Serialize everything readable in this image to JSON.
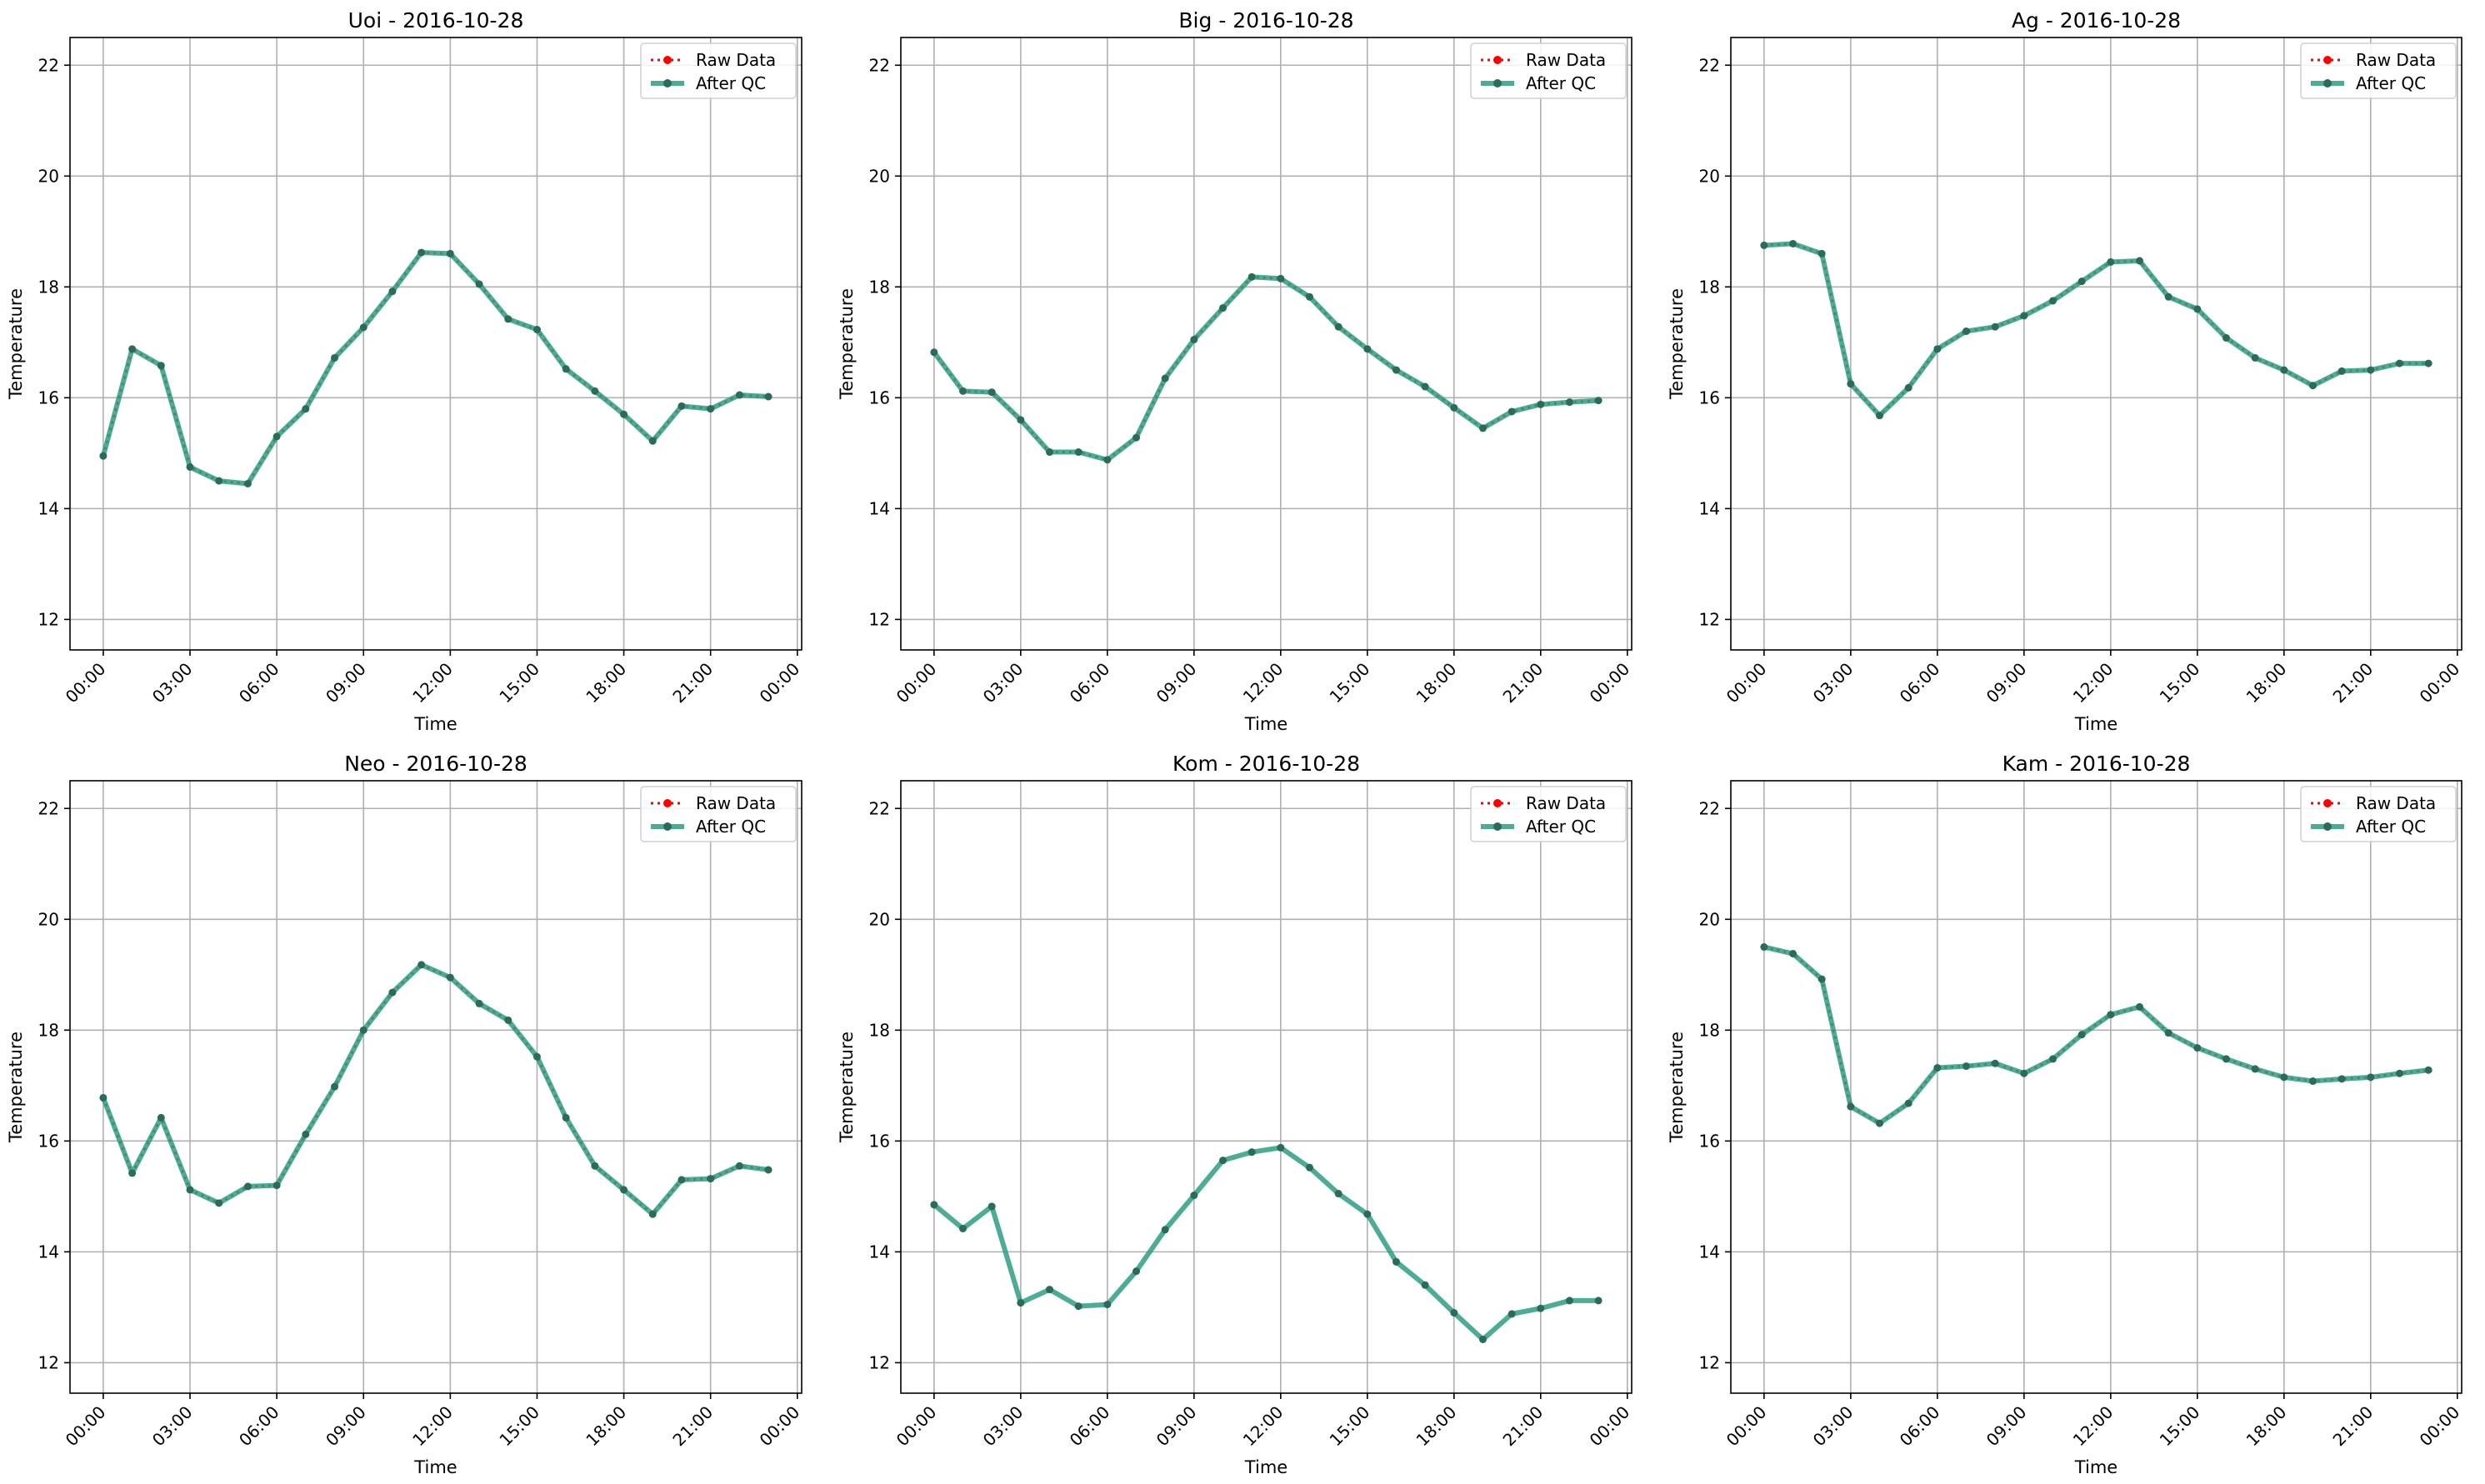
{
  "legend": {
    "raw_label": "Raw Data",
    "qc_label": "After QC"
  },
  "colors": {
    "raw": "#ff0000",
    "qc_line": "#2e9e82",
    "qc_marker": "#2a6b5a"
  },
  "xtick_labels": [
    "00:00",
    "03:00",
    "06:00",
    "09:00",
    "12:00",
    "15:00",
    "18:00",
    "21:00",
    "00:00"
  ],
  "ytick_labels": [
    "12",
    "14",
    "16",
    "18",
    "20",
    "22"
  ],
  "chart_data": [
    {
      "type": "line",
      "title": "Uoi - 2016-10-28",
      "xlabel": "Time",
      "ylabel": "Temperature",
      "x_hours": [
        0,
        1,
        2,
        3,
        4,
        5,
        6,
        7,
        8,
        9,
        10,
        11,
        12,
        13,
        14,
        15,
        16,
        17,
        18,
        19,
        20,
        21,
        22,
        23
      ],
      "xlim_hours": [
        -1.15,
        24.15
      ],
      "ylim": [
        11.45,
        22.5
      ],
      "grid": true,
      "legend_position": "top-right",
      "raw_visible": true,
      "series": [
        {
          "name": "Raw Data",
          "values": [
            14.95,
            16.88,
            16.58,
            14.75,
            14.5,
            14.45,
            15.3,
            15.8,
            16.72,
            17.27,
            17.92,
            18.62,
            18.6,
            18.05,
            17.42,
            17.23,
            16.52,
            16.12,
            15.7,
            15.22,
            15.85,
            15.8,
            16.05,
            16.02
          ]
        },
        {
          "name": "After QC",
          "values": [
            14.95,
            16.88,
            16.58,
            14.75,
            14.5,
            14.45,
            15.3,
            15.8,
            16.72,
            17.27,
            17.92,
            18.62,
            18.6,
            18.05,
            17.42,
            17.23,
            16.52,
            16.12,
            15.7,
            15.22,
            15.85,
            15.8,
            16.05,
            16.02
          ]
        }
      ]
    },
    {
      "type": "line",
      "title": "Big - 2016-10-28",
      "xlabel": "Time",
      "ylabel": "Temperature",
      "x_hours": [
        0,
        1,
        2,
        3,
        4,
        5,
        6,
        7,
        8,
        9,
        10,
        11,
        12,
        13,
        14,
        15,
        16,
        17,
        18,
        19,
        20,
        21,
        22,
        23
      ],
      "xlim_hours": [
        -1.15,
        24.15
      ],
      "ylim": [
        11.45,
        22.5
      ],
      "grid": true,
      "legend_position": "top-right",
      "raw_visible": true,
      "series": [
        {
          "name": "Raw Data",
          "values": [
            16.82,
            16.12,
            16.1,
            15.6,
            15.02,
            15.02,
            14.88,
            15.28,
            16.35,
            17.05,
            17.62,
            18.18,
            18.15,
            17.82,
            17.28,
            16.88,
            16.5,
            16.2,
            15.82,
            15.45,
            15.75,
            15.88,
            15.92,
            15.95
          ]
        },
        {
          "name": "After QC",
          "values": [
            16.82,
            16.12,
            16.1,
            15.6,
            15.02,
            15.02,
            14.88,
            15.28,
            16.35,
            17.05,
            17.62,
            18.18,
            18.15,
            17.82,
            17.28,
            16.88,
            16.5,
            16.2,
            15.82,
            15.45,
            15.75,
            15.88,
            15.92,
            15.95
          ]
        }
      ]
    },
    {
      "type": "line",
      "title": "Ag - 2016-10-28",
      "xlabel": "Time",
      "ylabel": "Temperature",
      "x_hours": [
        0,
        1,
        2,
        3,
        4,
        5,
        6,
        7,
        8,
        9,
        10,
        11,
        12,
        13,
        14,
        15,
        16,
        17,
        18,
        19,
        20,
        21,
        22,
        23
      ],
      "xlim_hours": [
        -1.15,
        24.15
      ],
      "ylim": [
        11.45,
        22.5
      ],
      "grid": true,
      "legend_position": "top-right",
      "raw_visible": true,
      "series": [
        {
          "name": "Raw Data",
          "values": [
            18.75,
            18.78,
            18.6,
            16.25,
            15.68,
            16.18,
            16.88,
            17.2,
            17.28,
            17.48,
            17.75,
            18.1,
            18.45,
            18.47,
            17.82,
            17.6,
            17.08,
            16.72,
            16.5,
            16.22,
            16.48,
            16.5,
            16.62,
            16.62
          ]
        },
        {
          "name": "After QC",
          "values": [
            18.75,
            18.78,
            18.6,
            16.25,
            15.68,
            16.18,
            16.88,
            17.2,
            17.28,
            17.48,
            17.75,
            18.1,
            18.45,
            18.47,
            17.82,
            17.6,
            17.08,
            16.72,
            16.5,
            16.22,
            16.48,
            16.5,
            16.62,
            16.62
          ]
        }
      ]
    },
    {
      "type": "line",
      "title": "Neo - 2016-10-28",
      "xlabel": "Time",
      "ylabel": "Temperature",
      "x_hours": [
        0,
        1,
        2,
        3,
        4,
        5,
        6,
        7,
        8,
        9,
        10,
        11,
        12,
        13,
        14,
        15,
        16,
        17,
        18,
        19,
        20,
        21,
        22,
        23
      ],
      "xlim_hours": [
        -1.15,
        24.15
      ],
      "ylim": [
        11.45,
        22.5
      ],
      "grid": true,
      "legend_position": "top-right",
      "raw_visible": true,
      "series": [
        {
          "name": "Raw Data",
          "values": [
            16.78,
            15.42,
            16.42,
            15.12,
            14.88,
            15.18,
            15.2,
            16.12,
            16.98,
            18.0,
            18.68,
            19.18,
            18.95,
            18.48,
            18.18,
            17.52,
            16.42,
            15.55,
            15.12,
            14.68,
            15.3,
            15.32,
            15.55,
            15.48
          ]
        },
        {
          "name": "After QC",
          "values": [
            16.78,
            15.42,
            16.42,
            15.12,
            14.88,
            15.18,
            15.2,
            16.12,
            16.98,
            18.0,
            18.68,
            19.18,
            18.95,
            18.48,
            18.18,
            17.52,
            16.42,
            15.55,
            15.12,
            14.68,
            15.3,
            15.32,
            15.55,
            15.48
          ]
        }
      ]
    },
    {
      "type": "line",
      "title": "Kom - 2016-10-28",
      "xlabel": "Time",
      "ylabel": "Temperature",
      "x_hours": [
        0,
        1,
        2,
        3,
        4,
        5,
        6,
        7,
        8,
        9,
        10,
        11,
        12,
        13,
        14,
        15,
        16,
        17,
        18,
        19,
        20,
        21,
        22,
        23
      ],
      "xlim_hours": [
        -1.15,
        24.15
      ],
      "ylim": [
        11.45,
        22.5
      ],
      "grid": true,
      "legend_position": "top-right",
      "raw_visible": false,
      "series": [
        {
          "name": "Raw Data",
          "values": [
            14.85,
            14.42,
            14.82,
            13.08,
            13.32,
            13.02,
            13.05,
            13.65,
            14.4,
            15.02,
            15.65,
            15.8,
            15.88,
            15.52,
            15.05,
            14.68,
            13.82,
            13.4,
            12.9,
            12.42,
            12.88,
            12.98,
            13.12,
            13.12
          ]
        },
        {
          "name": "After QC",
          "values": [
            14.85,
            14.42,
            14.82,
            13.08,
            13.32,
            13.02,
            13.05,
            13.65,
            14.4,
            15.02,
            15.65,
            15.8,
            15.88,
            15.52,
            15.05,
            14.68,
            13.82,
            13.4,
            12.9,
            12.42,
            12.88,
            12.98,
            13.12,
            13.12
          ]
        }
      ]
    },
    {
      "type": "line",
      "title": "Kam - 2016-10-28",
      "xlabel": "Time",
      "ylabel": "Temperature",
      "x_hours": [
        0,
        1,
        2,
        3,
        4,
        5,
        6,
        7,
        8,
        9,
        10,
        11,
        12,
        13,
        14,
        15,
        16,
        17,
        18,
        19,
        20,
        21,
        22,
        23
      ],
      "xlim_hours": [
        -1.15,
        24.15
      ],
      "ylim": [
        11.45,
        22.5
      ],
      "grid": true,
      "legend_position": "top-right",
      "raw_visible": true,
      "series": [
        {
          "name": "Raw Data",
          "values": [
            19.5,
            19.38,
            18.92,
            16.62,
            16.32,
            16.68,
            17.32,
            17.35,
            17.4,
            17.22,
            17.48,
            17.92,
            18.28,
            18.42,
            17.95,
            17.68,
            17.48,
            17.3,
            17.15,
            17.08,
            17.12,
            17.15,
            17.22,
            17.28
          ]
        },
        {
          "name": "After QC",
          "values": [
            19.5,
            19.38,
            18.92,
            16.62,
            16.32,
            16.68,
            17.32,
            17.35,
            17.4,
            17.22,
            17.48,
            17.92,
            18.28,
            18.42,
            17.95,
            17.68,
            17.48,
            17.3,
            17.15,
            17.08,
            17.12,
            17.15,
            17.22,
            17.28
          ]
        }
      ]
    }
  ]
}
